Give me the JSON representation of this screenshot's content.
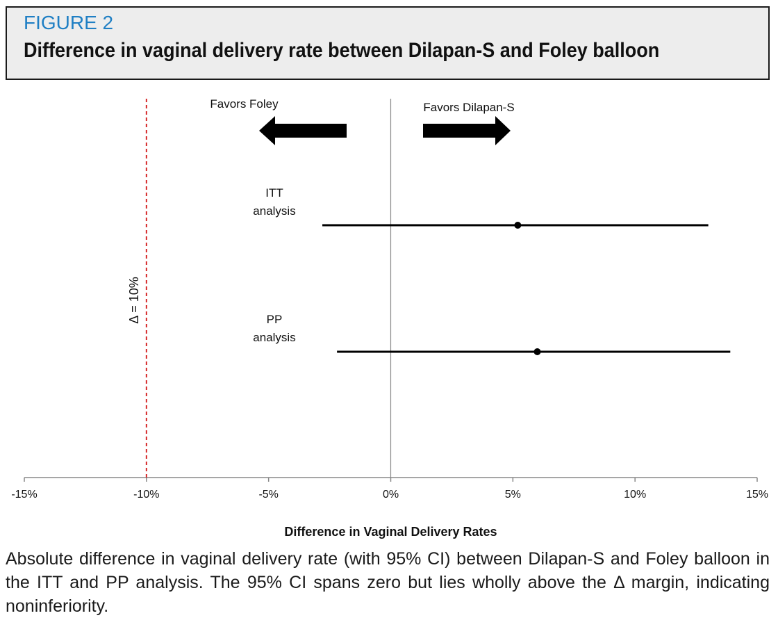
{
  "figure": {
    "label": "FIGURE 2",
    "title": "Difference in vaginal delivery rate between Dilapan-S and Foley balloon"
  },
  "caption": "Absolute difference in vaginal delivery rate (with 95% CI) between Dilapan-S and Foley balloon in the ITT and PP analysis. The 95% CI spans zero but lies wholly above the Δ margin, indicating noninferiority.",
  "colors": {
    "header_label": "#1f7fc4",
    "margin_line": "#d62728",
    "data": "#000000",
    "axis": "#888888"
  },
  "chart_data": {
    "type": "forest",
    "xlabel": "Difference in Vaginal Delivery Rates",
    "xlim": [
      -15,
      15
    ],
    "xticks": [
      -15,
      -10,
      -5,
      0,
      5,
      10,
      15
    ],
    "xtick_labels": [
      "-15%",
      "-10%",
      "-5%",
      "0%",
      "5%",
      "10%",
      "15%"
    ],
    "reference_line": 0,
    "margin": {
      "value": -10,
      "label": "Δ = 10%",
      "style": "dashed"
    },
    "direction_labels": {
      "left": "Favors Foley",
      "right": "Favors Dilapan-S"
    },
    "rows": [
      {
        "label": [
          "ITT",
          "analysis"
        ],
        "estimate": 5.2,
        "ci_low": -2.8,
        "ci_high": 13.0
      },
      {
        "label": [
          "PP",
          "analysis"
        ],
        "estimate": 6.0,
        "ci_low": -2.2,
        "ci_high": 13.9
      }
    ]
  }
}
